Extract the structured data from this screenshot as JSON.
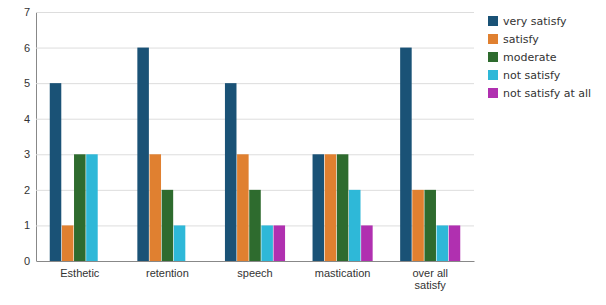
{
  "chart_data": {
    "type": "bar",
    "categories": [
      "Esthetic",
      "retention",
      "speech",
      "mastication",
      "over all\nsatisfy"
    ],
    "series": [
      {
        "name": "very satisfy",
        "color": "#1a5276",
        "values": [
          5,
          6,
          5,
          3,
          6
        ]
      },
      {
        "name": "satisfy",
        "color": "#e08030",
        "values": [
          1,
          3,
          3,
          3,
          2
        ]
      },
      {
        "name": "moderate",
        "color": "#2e6b2e",
        "values": [
          3,
          2,
          2,
          3,
          2
        ]
      },
      {
        "name": "not satisfy",
        "color": "#2eb8d8",
        "values": [
          3,
          1,
          1,
          2,
          1
        ]
      },
      {
        "name": "not satisfy at all",
        "color": "#b030b0",
        "values": [
          0,
          0,
          1,
          1,
          1
        ]
      }
    ],
    "ylim": [
      0,
      7
    ],
    "yticks": [
      0,
      1,
      2,
      3,
      4,
      5,
      6,
      7
    ],
    "grid": true,
    "legend": "right"
  }
}
